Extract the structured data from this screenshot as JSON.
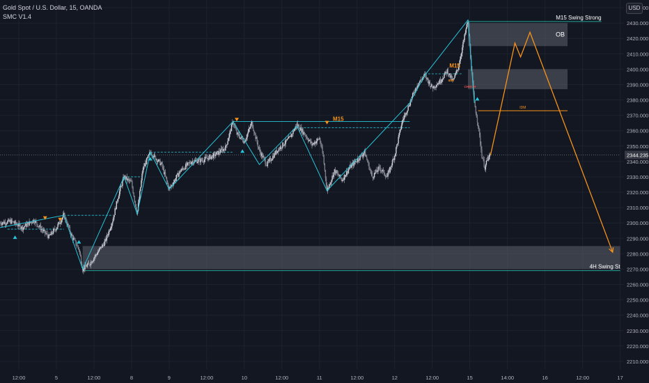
{
  "header": {
    "symbol_line": "Gold Spot / U.S. Dollar, 15, OANDA",
    "indicator": "SMC V1.4",
    "currency_button": "USD"
  },
  "colors": {
    "background": "#131722",
    "candles": "#b2b5be",
    "structure": "#26c6da",
    "projection": "#f7931a",
    "zone": "#5d606b",
    "grid": "#1e222d"
  },
  "chart_data": {
    "type": "candlestick",
    "symbol": "Gold Spot / U.S. Dollar",
    "timeframe": "15",
    "exchange": "OANDA",
    "ylim": [
      2205,
      2445
    ],
    "y_ticks": [
      2210,
      2220,
      2230,
      2240,
      2250,
      2260,
      2270,
      2280,
      2290,
      2300,
      2310,
      2320,
      2330,
      2340,
      2350,
      2360,
      2370,
      2380,
      2390,
      2400,
      2410,
      2420,
      2430,
      2440
    ],
    "y_tick_labels": [
      "2210.000",
      "2220.000",
      "2230.000",
      "2240.000",
      "2250.000",
      "2260.000",
      "2270.000",
      "2280.000",
      "2290.000",
      "2300.000",
      "2310.000",
      "2320.000",
      "2330.000",
      "2340.000",
      "2350.000",
      "2360.000",
      "2370.000",
      "2380.000",
      "2390.000",
      "2400.000",
      "2410.000",
      "2420.000",
      "2430.000",
      "2440.000"
    ],
    "x_ticks": [
      {
        "t": 0.5,
        "label": "12:00"
      },
      {
        "t": 1.5,
        "label": "5"
      },
      {
        "t": 2.5,
        "label": "12:00"
      },
      {
        "t": 3.5,
        "label": "8"
      },
      {
        "t": 4.5,
        "label": "9"
      },
      {
        "t": 5.5,
        "label": "12:00"
      },
      {
        "t": 6.5,
        "label": "10"
      },
      {
        "t": 7.5,
        "label": "12:00"
      },
      {
        "t": 8.5,
        "label": "11"
      },
      {
        "t": 9.5,
        "label": "12:00"
      },
      {
        "t": 10.5,
        "label": "12"
      },
      {
        "t": 11.5,
        "label": "12:00"
      },
      {
        "t": 12.5,
        "label": "15"
      },
      {
        "t": 13.5,
        "label": "14:00"
      },
      {
        "t": 14.5,
        "label": "16"
      },
      {
        "t": 15.5,
        "label": "12:00"
      },
      {
        "t": 16.5,
        "label": "17"
      }
    ],
    "price_path": [
      [
        0.0,
        2300
      ],
      [
        0.3,
        2301
      ],
      [
        0.6,
        2297
      ],
      [
        0.9,
        2302
      ],
      [
        1.1,
        2296
      ],
      [
        1.3,
        2291
      ],
      [
        1.5,
        2297
      ],
      [
        1.7,
        2305
      ],
      [
        1.9,
        2292
      ],
      [
        2.1,
        2283
      ],
      [
        2.2,
        2270
      ],
      [
        2.4,
        2274
      ],
      [
        2.6,
        2281
      ],
      [
        2.8,
        2288
      ],
      [
        3.0,
        2302
      ],
      [
        3.15,
        2318
      ],
      [
        3.3,
        2330
      ],
      [
        3.5,
        2326
      ],
      [
        3.65,
        2306
      ],
      [
        3.8,
        2335
      ],
      [
        4.0,
        2346
      ],
      [
        4.3,
        2338
      ],
      [
        4.5,
        2322
      ],
      [
        4.8,
        2334
      ],
      [
        5.1,
        2340
      ],
      [
        5.4,
        2341
      ],
      [
        5.7,
        2344
      ],
      [
        6.0,
        2349
      ],
      [
        6.2,
        2366
      ],
      [
        6.3,
        2358
      ],
      [
        6.5,
        2353
      ],
      [
        6.7,
        2365
      ],
      [
        6.9,
        2347
      ],
      [
        7.1,
        2338
      ],
      [
        7.4,
        2348
      ],
      [
        7.7,
        2355
      ],
      [
        7.9,
        2364
      ],
      [
        8.1,
        2358
      ],
      [
        8.3,
        2351
      ],
      [
        8.5,
        2355
      ],
      [
        8.6,
        2343
      ],
      [
        8.7,
        2321
      ],
      [
        8.9,
        2334
      ],
      [
        9.1,
        2328
      ],
      [
        9.3,
        2336
      ],
      [
        9.5,
        2341
      ],
      [
        9.7,
        2346
      ],
      [
        9.9,
        2330
      ],
      [
        10.1,
        2336
      ],
      [
        10.3,
        2330
      ],
      [
        10.5,
        2344
      ],
      [
        10.7,
        2366
      ],
      [
        10.9,
        2378
      ],
      [
        11.1,
        2390
      ],
      [
        11.3,
        2396
      ],
      [
        11.5,
        2388
      ],
      [
        11.7,
        2392
      ],
      [
        11.9,
        2399
      ],
      [
        12.05,
        2392
      ],
      [
        12.2,
        2402
      ],
      [
        12.35,
        2420
      ],
      [
        12.45,
        2432
      ],
      [
        12.55,
        2398
      ],
      [
        12.62,
        2378
      ],
      [
        12.72,
        2364
      ],
      [
        12.82,
        2344
      ],
      [
        12.9,
        2336
      ],
      [
        12.98,
        2342
      ],
      [
        13.05,
        2344
      ]
    ],
    "projection": [
      [
        13.05,
        2344
      ],
      [
        13.7,
        2417
      ],
      [
        13.85,
        2408
      ],
      [
        14.1,
        2424
      ],
      [
        16.3,
        2281
      ]
    ],
    "zones": [
      {
        "name": "OB",
        "t1": 12.45,
        "t2": 15.1,
        "y1": 2415,
        "y2": 2430,
        "label": "OB"
      },
      {
        "name": "zone-mid",
        "t1": 12.45,
        "t2": 15.1,
        "y1": 2387,
        "y2": 2400,
        "label": ""
      },
      {
        "name": "zone-low",
        "t1": 2.2,
        "t2": 16.5,
        "y1": 2270,
        "y2": 2285,
        "label": ""
      }
    ],
    "levels": [
      {
        "name": "m15-swing-strong",
        "t1": 12.45,
        "t2": 16.0,
        "y": 2431,
        "label": "M15 Swing Strong",
        "color": "#26a69a"
      },
      {
        "name": "4h-swing-st",
        "t1": 2.2,
        "t2": 16.5,
        "y": 2269,
        "label": "4H Swing St",
        "color": "#26a69a"
      },
      {
        "name": "idm-level",
        "t1": 12.72,
        "t2": 15.1,
        "y": 2373,
        "label": "IDM",
        "color": "#f7931a"
      },
      {
        "name": "current-price",
        "t1": 0,
        "t2": 16.5,
        "y": 2344.235,
        "label": "",
        "color": "#787b86"
      }
    ],
    "structure_zigzag": [
      [
        0.0,
        2297
      ],
      [
        1.7,
        2305
      ],
      [
        2.2,
        2270
      ],
      [
        3.3,
        2330
      ],
      [
        3.65,
        2306
      ],
      [
        4.0,
        2346
      ],
      [
        4.5,
        2322
      ],
      [
        6.2,
        2366
      ],
      [
        6.9,
        2338
      ],
      [
        7.9,
        2363
      ],
      [
        8.7,
        2321
      ],
      [
        10.9,
        2378
      ],
      [
        11.3,
        2396
      ],
      [
        12.45,
        2432
      ],
      [
        12.62,
        2378
      ]
    ],
    "dashed_levels": [
      {
        "t1": 0.2,
        "t2": 1.7,
        "y": 2296
      },
      {
        "t1": 1.7,
        "t2": 3.0,
        "y": 2305
      },
      {
        "t1": 3.3,
        "t2": 3.8,
        "y": 2330
      },
      {
        "t1": 4.0,
        "t2": 6.2,
        "y": 2346
      },
      {
        "t1": 7.9,
        "t2": 10.9,
        "y": 2362
      },
      {
        "t1": 11.3,
        "t2": 12.3,
        "y": 2397
      }
    ],
    "solid_levels": [
      {
        "t1": 6.2,
        "t2": 10.9,
        "y": 2366
      }
    ],
    "markers_down": [
      [
        1.2,
        2303
      ],
      [
        1.6,
        2302
      ],
      [
        6.3,
        2367
      ],
      [
        8.7,
        2365
      ]
    ],
    "markers_up": [
      [
        0.4,
        2291
      ],
      [
        2.1,
        2288
      ],
      [
        4.0,
        2342
      ],
      [
        6.45,
        2347
      ],
      [
        12.7,
        2381
      ]
    ],
    "annotations": [
      {
        "t": 9.0,
        "y": 2366.5,
        "text": "M15",
        "color": "#f7931a"
      },
      {
        "t": 12.1,
        "y": 2401,
        "text": "M15",
        "color": "#f7931a"
      },
      {
        "t": 12.0,
        "y": 2392,
        "text": "IDM",
        "color": "#f7931a"
      },
      {
        "t": 12.5,
        "y": 2388,
        "text": "CHOCH",
        "color": "#ef5350"
      }
    ],
    "last_price_label": "2344.235"
  }
}
